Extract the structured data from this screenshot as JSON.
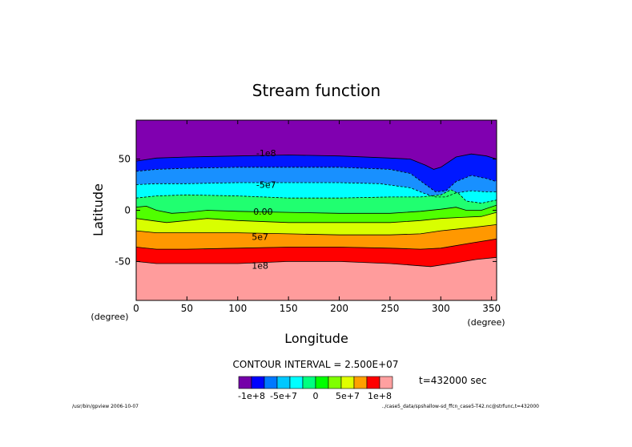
{
  "chart_data": {
    "type": "contour",
    "title": "Stream function",
    "xlabel": "Longitude",
    "ylabel": "Latitude",
    "x_unit": "(degree)",
    "y_unit": "(degree)",
    "xlim": [
      0,
      355
    ],
    "ylim": [
      -88,
      88
    ],
    "x_ticks": [
      0,
      50,
      100,
      150,
      200,
      250,
      300,
      350
    ],
    "y_ticks": [
      -50,
      0,
      50
    ],
    "contour_interval_text": "CONTOUR INTERVAL = 2.500E+07",
    "time_text": "t=432000 sec",
    "footer_left": "/usr/bin/gpview  2006-10-07",
    "footer_right": "../case5_data/spshallow-sd_ffcn_case5-T42.nc@strfunc,t=432000",
    "levels": [
      -100000000.0,
      -75000000.0,
      -50000000.0,
      -25000000.0,
      0,
      25000000.0,
      50000000.0,
      75000000.0,
      100000000.0
    ],
    "level_labels": [
      {
        "text": "-1e8",
        "lon": 128,
        "lat": 56
      },
      {
        "text": "-5e7",
        "lon": 128,
        "lat": 25
      },
      {
        "text": "0.00",
        "lon": 125,
        "lat": -1
      },
      {
        "text": "5e7",
        "lon": 122,
        "lat": -26
      },
      {
        "text": "1e8",
        "lon": 122,
        "lat": -54
      }
    ],
    "contours": [
      {
        "value": -100000000.0,
        "style": "solid",
        "points": [
          [
            0,
            48
          ],
          [
            20,
            51
          ],
          [
            50,
            52
          ],
          [
            100,
            53
          ],
          [
            150,
            54
          ],
          [
            200,
            53
          ],
          [
            250,
            51
          ],
          [
            270,
            50
          ],
          [
            285,
            44
          ],
          [
            293,
            40
          ],
          [
            300,
            42
          ],
          [
            315,
            52
          ],
          [
            330,
            55
          ],
          [
            345,
            53
          ],
          [
            355,
            50
          ]
        ]
      },
      {
        "value": -75000000.0,
        "style": "dashed",
        "points": [
          [
            0,
            38
          ],
          [
            20,
            40
          ],
          [
            50,
            41
          ],
          [
            100,
            42
          ],
          [
            150,
            42
          ],
          [
            200,
            42
          ],
          [
            250,
            40
          ],
          [
            270,
            36
          ],
          [
            285,
            25
          ],
          [
            295,
            18
          ],
          [
            305,
            19
          ],
          [
            315,
            28
          ],
          [
            330,
            34
          ],
          [
            345,
            31
          ],
          [
            355,
            28
          ]
        ]
      },
      {
        "value": -50000000.0,
        "style": "dashed",
        "points": [
          [
            0,
            25
          ],
          [
            20,
            26
          ],
          [
            50,
            26
          ],
          [
            100,
            27
          ],
          [
            150,
            27
          ],
          [
            200,
            27
          ],
          [
            240,
            26
          ],
          [
            270,
            22
          ],
          [
            285,
            16
          ],
          [
            295,
            13
          ],
          [
            305,
            13
          ],
          [
            315,
            17
          ],
          [
            330,
            19
          ],
          [
            345,
            18
          ],
          [
            355,
            18
          ]
        ]
      },
      {
        "value": -25000000.0,
        "style": "dashed",
        "points": [
          [
            0,
            12
          ],
          [
            20,
            14
          ],
          [
            50,
            15
          ],
          [
            100,
            14
          ],
          [
            150,
            12
          ],
          [
            200,
            12
          ],
          [
            250,
            13
          ],
          [
            280,
            13
          ],
          [
            300,
            15
          ],
          [
            310,
            20
          ],
          [
            318,
            16
          ],
          [
            325,
            9
          ],
          [
            340,
            7
          ],
          [
            355,
            10
          ]
        ]
      },
      {
        "value": 0,
        "style": "solid",
        "points": [
          [
            0,
            3
          ],
          [
            10,
            4
          ],
          [
            20,
            0
          ],
          [
            35,
            -3
          ],
          [
            50,
            -2
          ],
          [
            70,
            0
          ],
          [
            100,
            -1
          ],
          [
            150,
            -2
          ],
          [
            200,
            -3
          ],
          [
            250,
            -3
          ],
          [
            280,
            -1
          ],
          [
            300,
            1
          ],
          [
            315,
            3
          ],
          [
            325,
            0
          ],
          [
            340,
            0
          ],
          [
            355,
            5
          ]
        ]
      },
      {
        "value": 25000000.0,
        "style": "solid",
        "points": [
          [
            0,
            -8
          ],
          [
            15,
            -10
          ],
          [
            30,
            -12
          ],
          [
            50,
            -10
          ],
          [
            70,
            -8
          ],
          [
            100,
            -10
          ],
          [
            150,
            -12
          ],
          [
            200,
            -12
          ],
          [
            250,
            -12
          ],
          [
            280,
            -10
          ],
          [
            300,
            -8
          ],
          [
            320,
            -7
          ],
          [
            340,
            -6
          ],
          [
            355,
            -2
          ]
        ]
      },
      {
        "value": 50000000.0,
        "style": "solid",
        "points": [
          [
            0,
            -20
          ],
          [
            20,
            -22
          ],
          [
            50,
            -22
          ],
          [
            100,
            -22
          ],
          [
            150,
            -23
          ],
          [
            200,
            -24
          ],
          [
            250,
            -24
          ],
          [
            280,
            -23
          ],
          [
            300,
            -20
          ],
          [
            330,
            -17
          ],
          [
            355,
            -14
          ]
        ]
      },
      {
        "value": 75000000.0,
        "style": "solid",
        "points": [
          [
            0,
            -36
          ],
          [
            20,
            -38
          ],
          [
            50,
            -38
          ],
          [
            100,
            -37
          ],
          [
            150,
            -36
          ],
          [
            200,
            -36
          ],
          [
            250,
            -37
          ],
          [
            280,
            -38
          ],
          [
            300,
            -37
          ],
          [
            330,
            -32
          ],
          [
            355,
            -28
          ]
        ]
      },
      {
        "value": 100000000.0,
        "style": "solid",
        "points": [
          [
            0,
            -50
          ],
          [
            20,
            -52
          ],
          [
            50,
            -52
          ],
          [
            100,
            -52
          ],
          [
            150,
            -50
          ],
          [
            200,
            -50
          ],
          [
            250,
            -52
          ],
          [
            290,
            -55
          ],
          [
            310,
            -52
          ],
          [
            335,
            -48
          ],
          [
            355,
            -46
          ]
        ]
      }
    ],
    "colorbar": {
      "colors": [
        "#7400a8",
        "#0000ff",
        "#0078ff",
        "#00c8ff",
        "#00ffff",
        "#00ff80",
        "#00ff00",
        "#7fff00",
        "#e0ff00",
        "#ffa000",
        "#ff0000",
        "#ffa0a0"
      ],
      "fill_colors": [
        "#8000b0",
        "#0018ff",
        "#1890ff",
        "#00ffff",
        "#20ff70",
        "#50ff00",
        "#d8ff00",
        "#ff9800",
        "#ff0000",
        "#ff9c9c"
      ],
      "labels": [
        "-1e+8",
        "-5e+7",
        "0",
        "5e+7",
        "1e+8"
      ]
    }
  }
}
